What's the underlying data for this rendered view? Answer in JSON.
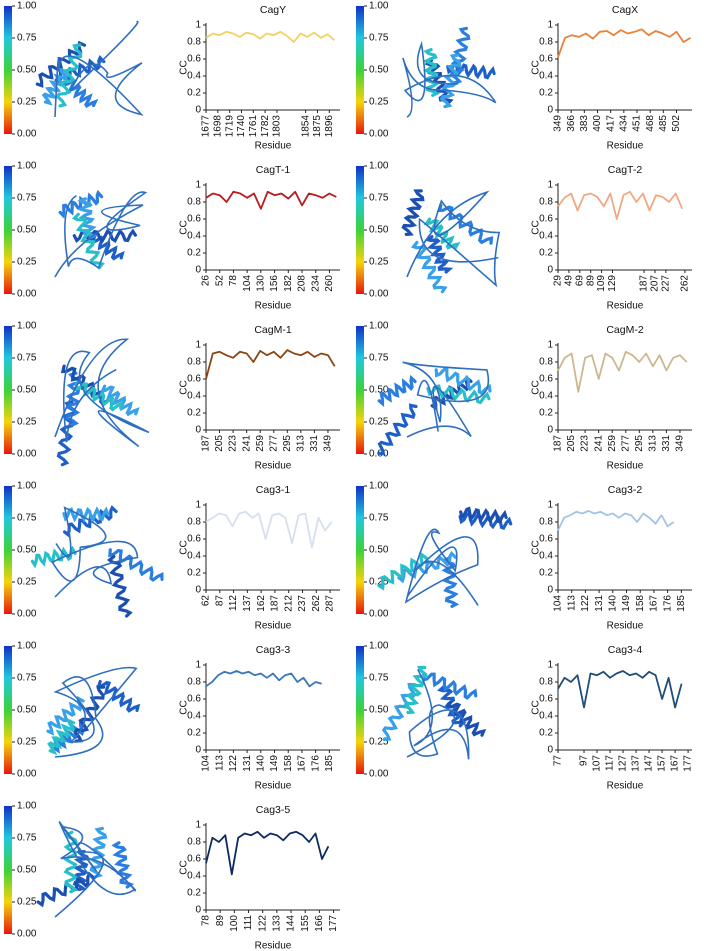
{
  "colorbar_ticks": [
    {
      "value": 0,
      "label": "0.00"
    },
    {
      "value": 0.25,
      "label": "0.25"
    },
    {
      "value": 0.5,
      "label": "0.50"
    },
    {
      "value": 0.75,
      "label": "0.75"
    },
    {
      "value": 1,
      "label": "1.00"
    }
  ],
  "chart_data": [
    {
      "type": "line",
      "title": "CagY",
      "x_label": "Residue",
      "y_label": "CC",
      "color": "#f5d060",
      "x": [
        1677,
        1689,
        1701,
        1713,
        1725,
        1737,
        1749,
        1761,
        1773,
        1785,
        1797,
        1809,
        1821,
        1833,
        1845,
        1857,
        1869,
        1881,
        1893,
        1905
      ],
      "values": [
        0.85,
        0.9,
        0.88,
        0.92,
        0.9,
        0.86,
        0.91,
        0.89,
        0.84,
        0.9,
        0.88,
        0.92,
        0.87,
        0.8,
        0.9,
        0.86,
        0.91,
        0.85,
        0.89,
        0.82
      ],
      "xlim": [
        1677,
        1915
      ],
      "xticks": [
        1677,
        1698,
        1719,
        1740,
        1761,
        1782,
        1803,
        1854,
        1875,
        1896
      ],
      "ylim": [
        0,
        1
      ],
      "yticks": [
        0,
        0.2,
        0.4,
        0.6,
        0.8,
        1
      ]
    },
    {
      "type": "line",
      "title": "CagX",
      "x_label": "Residue",
      "y_label": "CC",
      "color": "#e8823a",
      "x": [
        349,
        358,
        367,
        376,
        385,
        394,
        403,
        412,
        421,
        430,
        439,
        448,
        457,
        466,
        475,
        484,
        493,
        502,
        511,
        520
      ],
      "values": [
        0.62,
        0.85,
        0.88,
        0.86,
        0.9,
        0.84,
        0.92,
        0.93,
        0.88,
        0.94,
        0.9,
        0.92,
        0.95,
        0.88,
        0.93,
        0.9,
        0.86,
        0.92,
        0.8,
        0.85
      ],
      "xlim": [
        349,
        522
      ],
      "xticks": [
        349,
        366,
        383,
        400,
        417,
        434,
        451,
        468,
        485,
        502
      ],
      "ylim": [
        0,
        1
      ],
      "yticks": [
        0,
        0.2,
        0.4,
        0.6,
        0.8,
        1
      ]
    },
    {
      "type": "line",
      "title": "CagT-1",
      "x_label": "Residue",
      "y_label": "CC",
      "color": "#b81c1c",
      "x": [
        26,
        39,
        52,
        65,
        78,
        91,
        104,
        117,
        130,
        143,
        156,
        169,
        182,
        195,
        208,
        221,
        234,
        247,
        260,
        273
      ],
      "values": [
        0.85,
        0.9,
        0.88,
        0.8,
        0.92,
        0.9,
        0.85,
        0.9,
        0.72,
        0.92,
        0.88,
        0.9,
        0.84,
        0.92,
        0.76,
        0.9,
        0.88,
        0.85,
        0.9,
        0.86
      ],
      "xlim": [
        26,
        280
      ],
      "xticks": [
        26,
        52,
        78,
        104,
        130,
        156,
        182,
        208,
        234,
        260
      ],
      "ylim": [
        0,
        1
      ],
      "yticks": [
        0,
        0.2,
        0.4,
        0.6,
        0.8,
        1
      ]
    },
    {
      "type": "line",
      "title": "CagT-2",
      "x_label": "Residue",
      "y_label": "CC",
      "color": "#f0a882",
      "x": [
        29,
        41,
        53,
        65,
        77,
        89,
        101,
        113,
        125,
        137,
        149,
        161,
        173,
        185,
        197,
        209,
        221,
        233,
        245,
        257
      ],
      "values": [
        0.75,
        0.85,
        0.9,
        0.7,
        0.88,
        0.9,
        0.86,
        0.75,
        0.9,
        0.6,
        0.88,
        0.92,
        0.8,
        0.9,
        0.7,
        0.88,
        0.86,
        0.8,
        0.9,
        0.72
      ],
      "xlim": [
        29,
        275
      ],
      "xticks": [
        29,
        49,
        69,
        89,
        109,
        129,
        187,
        207,
        227,
        262
      ],
      "ylim": [
        0,
        1
      ],
      "yticks": [
        0,
        0.2,
        0.4,
        0.6,
        0.8,
        1
      ]
    },
    {
      "type": "line",
      "title": "CagM-1",
      "x_label": "Residue",
      "y_label": "CC",
      "color": "#8b4513",
      "x": [
        187,
        196,
        205,
        214,
        223,
        232,
        241,
        250,
        259,
        268,
        277,
        286,
        295,
        304,
        313,
        322,
        331,
        340,
        349,
        358
      ],
      "values": [
        0.6,
        0.9,
        0.92,
        0.88,
        0.85,
        0.92,
        0.9,
        0.8,
        0.93,
        0.88,
        0.92,
        0.85,
        0.94,
        0.9,
        0.88,
        0.92,
        0.86,
        0.9,
        0.88,
        0.75
      ],
      "xlim": [
        187,
        365
      ],
      "xticks": [
        187,
        205,
        223,
        241,
        259,
        277,
        295,
        313,
        331,
        349
      ],
      "ylim": [
        0,
        1
      ],
      "yticks": [
        0,
        0.2,
        0.4,
        0.6,
        0.8,
        1
      ]
    },
    {
      "type": "line",
      "title": "CagM-2",
      "x_label": "Residue",
      "y_label": "CC",
      "color": "#cdb790",
      "x": [
        187,
        196,
        205,
        214,
        223,
        232,
        241,
        250,
        259,
        268,
        277,
        286,
        295,
        304,
        313,
        322,
        331,
        340,
        349,
        358
      ],
      "values": [
        0.7,
        0.85,
        0.9,
        0.45,
        0.85,
        0.88,
        0.6,
        0.9,
        0.85,
        0.7,
        0.92,
        0.88,
        0.8,
        0.9,
        0.75,
        0.88,
        0.7,
        0.85,
        0.88,
        0.8
      ],
      "xlim": [
        187,
        365
      ],
      "xticks": [
        187,
        205,
        223,
        241,
        259,
        277,
        295,
        313,
        331,
        349
      ],
      "ylim": [
        0,
        1
      ],
      "yticks": [
        0,
        0.2,
        0.4,
        0.6,
        0.8,
        1
      ]
    },
    {
      "type": "line",
      "title": "Cag3-1",
      "x_label": "Residue",
      "y_label": "CC",
      "color": "#d6def0",
      "x": [
        62,
        74,
        86,
        98,
        110,
        122,
        134,
        146,
        158,
        170,
        182,
        194,
        206,
        218,
        230,
        242,
        254,
        266,
        278,
        290
      ],
      "values": [
        0.8,
        0.85,
        0.9,
        0.88,
        0.75,
        0.9,
        0.92,
        0.85,
        0.9,
        0.6,
        0.88,
        0.9,
        0.85,
        0.55,
        0.88,
        0.9,
        0.5,
        0.85,
        0.7,
        0.8
      ],
      "xlim": [
        62,
        305
      ],
      "xticks": [
        62,
        87,
        112,
        137,
        162,
        187,
        212,
        237,
        262,
        287
      ],
      "ylim": [
        0,
        1
      ],
      "yticks": [
        0,
        0.2,
        0.4,
        0.6,
        0.8,
        1
      ]
    },
    {
      "type": "line",
      "title": "Cag3-2",
      "x_label": "Residue",
      "y_label": "CC",
      "color": "#a3c4e6",
      "x": [
        104,
        108,
        112,
        116,
        120,
        124,
        128,
        132,
        136,
        140,
        144,
        148,
        152,
        156,
        160,
        164,
        168,
        172,
        176,
        180
      ],
      "values": [
        0.7,
        0.85,
        0.88,
        0.92,
        0.9,
        0.93,
        0.9,
        0.92,
        0.88,
        0.9,
        0.85,
        0.9,
        0.88,
        0.8,
        0.9,
        0.85,
        0.78,
        0.88,
        0.75,
        0.8
      ],
      "xlim": [
        104,
        192
      ],
      "xticks": [
        104,
        113,
        122,
        131,
        140,
        149,
        158,
        167,
        176,
        185
      ],
      "ylim": [
        0,
        1
      ],
      "yticks": [
        0,
        0.2,
        0.4,
        0.6,
        0.8,
        1
      ]
    },
    {
      "type": "line",
      "title": "Cag3-3",
      "x_label": "Residue",
      "y_label": "CC",
      "color": "#3a78b5",
      "x": [
        104,
        108,
        112,
        116,
        120,
        124,
        128,
        132,
        136,
        140,
        144,
        148,
        152,
        156,
        160,
        164,
        168,
        172,
        176,
        180
      ],
      "values": [
        0.75,
        0.8,
        0.88,
        0.92,
        0.9,
        0.93,
        0.9,
        0.92,
        0.88,
        0.9,
        0.85,
        0.9,
        0.82,
        0.88,
        0.9,
        0.8,
        0.85,
        0.75,
        0.8,
        0.78
      ],
      "xlim": [
        104,
        192
      ],
      "xticks": [
        104,
        113,
        122,
        131,
        140,
        149,
        158,
        167,
        176,
        185
      ],
      "ylim": [
        0,
        1
      ],
      "yticks": [
        0,
        0.2,
        0.4,
        0.6,
        0.8,
        1
      ]
    },
    {
      "type": "line",
      "title": "Cag3-4",
      "x_label": "Residue",
      "y_label": "CC",
      "color": "#1f4e79",
      "x": [
        77,
        82,
        87,
        92,
        97,
        102,
        107,
        112,
        117,
        122,
        127,
        132,
        137,
        142,
        147,
        152,
        157,
        162,
        167,
        172
      ],
      "values": [
        0.72,
        0.85,
        0.8,
        0.88,
        0.5,
        0.9,
        0.88,
        0.92,
        0.85,
        0.9,
        0.93,
        0.88,
        0.9,
        0.85,
        0.92,
        0.88,
        0.6,
        0.85,
        0.5,
        0.78
      ],
      "xlim": [
        77,
        180
      ],
      "xticks": [
        77,
        97,
        107,
        117,
        127,
        137,
        147,
        157,
        167,
        177
      ],
      "ylim": [
        0,
        1
      ],
      "yticks": [
        0,
        0.2,
        0.4,
        0.6,
        0.8,
        1
      ]
    },
    {
      "type": "line",
      "title": "Cag3-5",
      "x_label": "Residue",
      "y_label": "CC",
      "color": "#0f2a5e",
      "x": [
        78,
        83,
        88,
        93,
        98,
        103,
        108,
        113,
        118,
        123,
        128,
        133,
        138,
        143,
        148,
        153,
        158,
        163,
        168,
        173
      ],
      "values": [
        0.55,
        0.85,
        0.8,
        0.88,
        0.42,
        0.85,
        0.9,
        0.88,
        0.92,
        0.85,
        0.9,
        0.88,
        0.82,
        0.9,
        0.92,
        0.88,
        0.8,
        0.9,
        0.6,
        0.75
      ],
      "xlim": [
        78,
        182
      ],
      "xticks": [
        78,
        89,
        100,
        111,
        122,
        133,
        144,
        155,
        166,
        177
      ],
      "ylim": [
        0,
        1
      ],
      "yticks": [
        0,
        0.2,
        0.4,
        0.6,
        0.8,
        1
      ]
    }
  ]
}
